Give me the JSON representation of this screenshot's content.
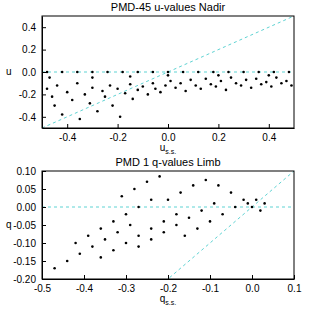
{
  "chart_data": [
    {
      "type": "scatter",
      "title": "PMD-45 u-values Nadir",
      "x_label": "u",
      "x_label_subscript": "s.s.",
      "y_label": "u",
      "color": "#000000",
      "marker": "dot",
      "xlim": [
        -0.5,
        0.5
      ],
      "ylim": [
        -0.5,
        0.5
      ],
      "xticks": [
        -0.4,
        -0.2,
        {
          "value": 0,
          "label": "0.0"
        },
        0.2,
        0.4
      ],
      "yticks": [
        -0.4,
        -0.2,
        {
          "value": 0,
          "label": "0.0"
        },
        0.2,
        0.4
      ],
      "x": [
        -0.48,
        -0.42,
        -0.36,
        -0.3,
        -0.24,
        -0.18,
        -0.12,
        -0.06,
        0.0,
        0.06,
        0.12,
        0.18,
        0.24,
        0.3,
        0.36,
        0.42,
        0.48,
        -0.48,
        -0.46,
        -0.45,
        -0.44,
        -0.42,
        -0.4,
        -0.38,
        -0.36,
        -0.35,
        -0.33,
        -0.31,
        -0.3,
        -0.28,
        -0.26,
        -0.25,
        -0.23,
        -0.22,
        -0.2,
        -0.19,
        -0.17,
        -0.15,
        -0.14,
        -0.12,
        -0.1,
        -0.08,
        -0.06,
        -0.05,
        -0.03,
        -0.01,
        0.01,
        0.03,
        0.05,
        0.07,
        0.09,
        0.11,
        0.13,
        0.15,
        0.17,
        0.19,
        0.21,
        0.23,
        0.25,
        0.27,
        0.29,
        0.31,
        0.33,
        0.35,
        0.37,
        0.39,
        0.41,
        0.43,
        0.45,
        0.47,
        0.49,
        -0.47,
        -0.3,
        -0.15,
        0.0,
        0.2,
        0.4
      ],
      "values": [
        0,
        0,
        0,
        0,
        0,
        0,
        0,
        0,
        0,
        0,
        0,
        0,
        0,
        0,
        0,
        0,
        0,
        -0.15,
        -0.22,
        -0.3,
        -0.12,
        -0.38,
        -0.18,
        -0.25,
        -0.1,
        -0.42,
        -0.2,
        -0.28,
        -0.14,
        -0.35,
        -0.17,
        -0.22,
        -0.12,
        -0.3,
        -0.15,
        -0.4,
        -0.19,
        -0.11,
        -0.24,
        -0.16,
        -0.13,
        -0.2,
        -0.1,
        -0.15,
        -0.18,
        -0.12,
        -0.08,
        -0.14,
        -0.1,
        -0.17,
        -0.07,
        -0.12,
        -0.15,
        -0.06,
        -0.11,
        -0.13,
        -0.08,
        -0.16,
        -0.05,
        -0.1,
        -0.12,
        -0.07,
        -0.14,
        -0.06,
        -0.11,
        -0.09,
        -0.13,
        -0.05,
        -0.1,
        -0.08,
        -0.12,
        -0.05,
        -0.05,
        -0.04,
        -0.03,
        -0.03,
        -0.03
      ]
    },
    {
      "type": "scatter",
      "title": "PMD 1 q-values Limb",
      "x_label": "q",
      "x_label_subscript": "s.s.",
      "y_label": "q",
      "color": "#000000",
      "marker": "dot",
      "xlim": [
        -0.5,
        0.1
      ],
      "ylim": [
        -0.2,
        0.1
      ],
      "xticks": [
        -0.5,
        -0.4,
        -0.3,
        -0.2,
        -0.1,
        {
          "value": 0,
          "label": "0.0"
        },
        0.1
      ],
      "yticks": [
        {
          "value": -0.2,
          "label": "-0.20"
        },
        -0.15,
        {
          "value": -0.1,
          "label": "-0.10"
        },
        -0.05,
        {
          "value": 0,
          "label": "0.00"
        },
        0.05,
        {
          "value": 0.1,
          "label": "0.10"
        }
      ],
      "x": [
        -0.47,
        -0.44,
        -0.41,
        -0.38,
        -0.35,
        -0.32,
        -0.29,
        -0.42,
        -0.39,
        -0.36,
        -0.33,
        -0.3,
        -0.27,
        -0.24,
        -0.36,
        -0.33,
        -0.3,
        -0.27,
        -0.24,
        -0.21,
        -0.18,
        -0.31,
        -0.28,
        -0.25,
        -0.22,
        -0.27,
        -0.24,
        -0.21,
        -0.18,
        -0.15,
        -0.12,
        -0.09,
        -0.2,
        -0.17,
        -0.14,
        -0.11,
        -0.08,
        -0.05,
        -0.16,
        -0.13,
        -0.1,
        -0.07,
        -0.04,
        -0.01,
        -0.02,
        0.0,
        0.01,
        0.03,
        0.02
      ],
      "values": [
        -0.17,
        -0.15,
        -0.13,
        -0.11,
        -0.09,
        -0.07,
        -0.05,
        -0.1,
        -0.08,
        -0.06,
        -0.04,
        -0.02,
        0.0,
        0.02,
        -0.14,
        -0.12,
        -0.1,
        -0.08,
        -0.06,
        -0.04,
        -0.02,
        0.03,
        0.05,
        0.07,
        0.085,
        -0.11,
        -0.09,
        -0.07,
        -0.05,
        -0.03,
        -0.01,
        0.01,
        0.02,
        0.04,
        0.06,
        0.075,
        0.06,
        0.04,
        -0.08,
        -0.06,
        -0.04,
        -0.02,
        0.0,
        0.01,
        0.02,
        0.0,
        0.02,
        0.01,
        -0.01
      ]
    }
  ]
}
